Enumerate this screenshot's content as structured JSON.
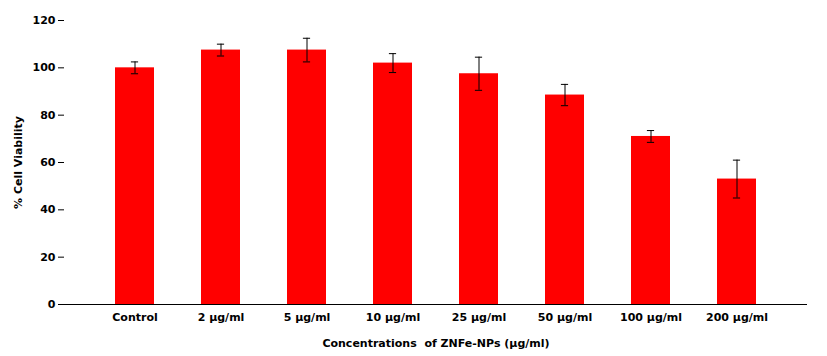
{
  "chart_data": {
    "type": "bar",
    "categories": [
      "Control",
      "2 μg/ml",
      "5 μg/ml",
      "10 μg/ml",
      "25 μg/ml",
      "50 μg/ml",
      "100 μg/ml",
      "200 μg/ml"
    ],
    "values": [
      100.0,
      107.5,
      107.5,
      102.0,
      97.5,
      88.5,
      71.0,
      53.0
    ],
    "errors": [
      2.5,
      2.5,
      5.0,
      4.0,
      7.0,
      4.5,
      2.5,
      8.0
    ],
    "color": "#FF0000",
    "xlabel": "Concentrations  of ZNFe-NPs (μg/ml)",
    "ylabel": "% Cell Viability",
    "ylim": [
      0,
      120
    ],
    "yticks": [
      0,
      20,
      40,
      60,
      80,
      100,
      120
    ],
    "grid": false
  }
}
